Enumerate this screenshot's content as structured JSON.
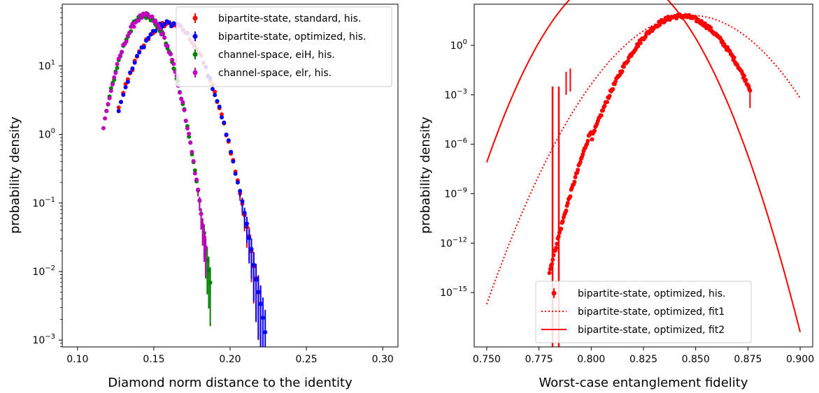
{
  "chart_data": [
    {
      "type": "scatter",
      "xlabel": "Diamond norm distance to the identity",
      "ylabel": "probability density",
      "xlim": [
        0.09,
        0.31
      ],
      "ylim_log10": [
        -3.1,
        1.9
      ],
      "yscale": "log",
      "x_ticks": [
        "0.10",
        "0.15",
        "0.20",
        "0.25",
        "0.30"
      ],
      "x_tick_values": [
        0.1,
        0.15,
        0.2,
        0.25,
        0.3
      ],
      "y_ticks": [
        {
          "base": "10",
          "exp": "1",
          "value": 1
        },
        {
          "base": "10",
          "exp": "0",
          "value": 0
        },
        {
          "base": "10",
          "exp": "−1",
          "value": -1
        },
        {
          "base": "10",
          "exp": "−2",
          "value": -2
        },
        {
          "base": "10",
          "exp": "−3",
          "value": -3
        }
      ],
      "legend_position": "top-right",
      "series": [
        {
          "name": "bipartite-state, standard, his.",
          "color": "#ff0000",
          "peak_x": 0.16,
          "peak_log10": 1.62,
          "sigma": 0.0165,
          "x_range": [
            0.127,
            0.22
          ],
          "step": 0.0015
        },
        {
          "name": "bipartite-state, optimized, his.",
          "color": "#0000ff",
          "peak_x": 0.16,
          "peak_log10": 1.62,
          "sigma": 0.0165,
          "x_range": [
            0.127,
            0.223
          ],
          "step": 0.0015
        },
        {
          "name": "channel-space, eiH, his.",
          "color": "#008000",
          "peak_x": 0.1445,
          "peak_log10": 1.73,
          "sigma": 0.012,
          "x_range": [
            0.119,
            0.187
          ],
          "step": 0.001
        },
        {
          "name": "channel-space, elr, his.",
          "color": "#bf00bf",
          "peak_x": 0.1445,
          "peak_log10": 1.73,
          "sigma": 0.012,
          "x_range": [
            0.117,
            0.184
          ],
          "step": 0.001
        }
      ]
    },
    {
      "type": "line",
      "xlabel": "Worst-case entanglement fidelity",
      "ylabel": "probability density",
      "xlim": [
        0.744,
        0.906
      ],
      "ylim_log10": [
        -18.3,
        2.5
      ],
      "yscale": "log",
      "x_ticks": [
        "0.750",
        "0.775",
        "0.800",
        "0.825",
        "0.850",
        "0.875",
        "0.900"
      ],
      "x_tick_values": [
        0.75,
        0.775,
        0.8,
        0.825,
        0.85,
        0.875,
        0.9
      ],
      "y_ticks": [
        {
          "base": "10",
          "exp": "0",
          "value": 0
        },
        {
          "base": "10",
          "exp": "−3",
          "value": -3
        },
        {
          "base": "10",
          "exp": "−6",
          "value": -6
        },
        {
          "base": "10",
          "exp": "−9",
          "value": -9
        },
        {
          "base": "10",
          "exp": "−12",
          "value": -12
        },
        {
          "base": "10",
          "exp": "−15",
          "value": -15
        }
      ],
      "legend_position": "bottom-center",
      "series": [
        {
          "name": "bipartite-state, optimized, his.",
          "color": "#ff0000",
          "style": "points",
          "x_range": [
            0.78,
            0.876
          ],
          "peak_x": 0.843,
          "peak_log10": 1.78
        },
        {
          "name": "bipartite-state, optimized, fit1",
          "color": "#ff0000",
          "style": "dotted",
          "endpoints_log10": [
            [
              0.75,
              -15.7
            ],
            [
              0.843,
              1.78
            ],
            [
              0.9,
              -3.2
            ]
          ]
        },
        {
          "name": "bipartite-state, optimized, fit2",
          "color": "#ff0000",
          "style": "solid",
          "endpoints_log10": [
            [
              0.75,
              -7.1
            ],
            [
              0.843,
              1.78
            ],
            [
              0.9,
              -17.4
            ]
          ]
        }
      ]
    }
  ]
}
